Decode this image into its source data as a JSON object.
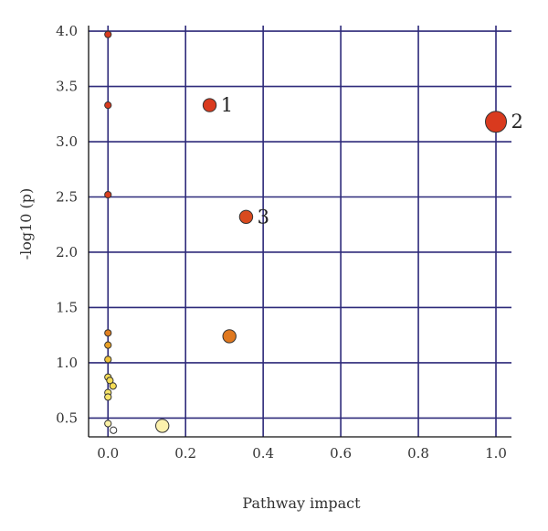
{
  "chart_data": {
    "type": "scatter",
    "title": "",
    "xlabel": "Pathway impact",
    "ylabel": "-log10 (p)",
    "xlim": [
      -0.05,
      1.04
    ],
    "ylim": [
      0.33,
      4.05
    ],
    "x_ticks": [
      0.0,
      0.2,
      0.4,
      0.6,
      0.8,
      1.0
    ],
    "x_tick_labels": [
      "0.0",
      "0.2",
      "0.4",
      "0.6",
      "0.8",
      "1.0"
    ],
    "y_ticks": [
      0.5,
      1.0,
      1.5,
      2.0,
      2.5,
      3.0,
      3.5,
      4.0
    ],
    "y_tick_labels": [
      "0.5",
      "1.0",
      "1.5",
      "2.0",
      "2.5",
      "3.0",
      "3.5",
      "4.0"
    ],
    "grid": true,
    "colors": {
      "grid": "#2e2a7a",
      "axis": "#111111",
      "point_stroke": "#333333"
    },
    "points": [
      {
        "x": 0.0,
        "y": 3.97,
        "size": "small",
        "color": "#d93a1e"
      },
      {
        "x": 0.0,
        "y": 3.33,
        "size": "small",
        "color": "#d93a1e"
      },
      {
        "x": 0.0,
        "y": 2.52,
        "size": "small",
        "color": "#da3f1f"
      },
      {
        "x": 0.0,
        "y": 1.27,
        "size": "small",
        "color": "#e2801f"
      },
      {
        "x": 0.0,
        "y": 1.16,
        "size": "small",
        "color": "#e8a026"
      },
      {
        "x": 0.0,
        "y": 1.03,
        "size": "small",
        "color": "#f0c238"
      },
      {
        "x": 0.0,
        "y": 0.87,
        "size": "small",
        "color": "#f5dc55"
      },
      {
        "x": 0.005,
        "y": 0.84,
        "size": "small",
        "color": "#f5dc55"
      },
      {
        "x": 0.013,
        "y": 0.79,
        "size": "small",
        "color": "#f5dc55"
      },
      {
        "x": 0.0,
        "y": 0.73,
        "size": "small",
        "color": "#f7e46a"
      },
      {
        "x": 0.0,
        "y": 0.69,
        "size": "small",
        "color": "#f7e46a"
      },
      {
        "x": 0.0,
        "y": 0.45,
        "size": "small",
        "color": "#fbf1a6"
      },
      {
        "x": 0.014,
        "y": 0.39,
        "size": "small",
        "color": "#ffffff"
      },
      {
        "x": 0.143,
        "y": 0.44,
        "size": "small",
        "color": "#fbf1a6"
      },
      {
        "x": 0.14,
        "y": 0.43,
        "size": "medium",
        "color": "#fcf1ad"
      },
      {
        "x": 0.262,
        "y": 3.33,
        "size": "medium",
        "color": "#d93a1e",
        "label": "1"
      },
      {
        "x": 1.0,
        "y": 3.18,
        "size": "large",
        "color": "#d93a1e",
        "label": "2"
      },
      {
        "x": 0.356,
        "y": 2.32,
        "size": "medium",
        "color": "#d94a1e",
        "label": "3"
      },
      {
        "x": 0.313,
        "y": 1.24,
        "size": "medium",
        "color": "#e0781e"
      }
    ]
  }
}
